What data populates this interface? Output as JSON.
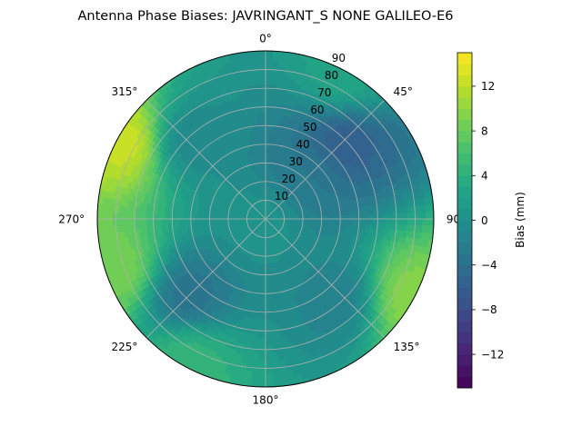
{
  "chart_data": {
    "type": "heatmap",
    "subtype": "polar-contour",
    "title": "Antenna Phase Biases: JAVRINGANT_S    NONE GALILEO-E6",
    "theta_ticks": [
      {
        "deg": 0,
        "label": "0°"
      },
      {
        "deg": 45,
        "label": "45°"
      },
      {
        "deg": 90,
        "label": "90°"
      },
      {
        "deg": 135,
        "label": "135°"
      },
      {
        "deg": 180,
        "label": "180°"
      },
      {
        "deg": 225,
        "label": "225°"
      },
      {
        "deg": 270,
        "label": "270°"
      },
      {
        "deg": 315,
        "label": "315°"
      }
    ],
    "theta_direction": "clockwise",
    "theta_zero": "top",
    "r_ticks": [
      10,
      20,
      30,
      40,
      50,
      60,
      70,
      80,
      90
    ],
    "r_range": [
      0,
      90
    ],
    "grid": true,
    "colorbar": {
      "label": "Bias (mm)",
      "range": [
        -15,
        15
      ],
      "ticks": [
        -12,
        -8,
        -4,
        0,
        4,
        8,
        12
      ],
      "tick_labels": [
        "−12",
        "−8",
        "−4",
        "0",
        "4",
        "8",
        "12"
      ],
      "levels": 30,
      "colormap": "viridis"
    },
    "bias_field_samples_mm": [
      {
        "r": 0,
        "theta": 0,
        "value": 0.5
      },
      {
        "r": 30,
        "theta": 45,
        "value": -3
      },
      {
        "r": 60,
        "theta": 45,
        "value": -6
      },
      {
        "r": 60,
        "theta": 225,
        "value": -4
      },
      {
        "r": 60,
        "theta": 135,
        "value": -2
      },
      {
        "r": 60,
        "theta": 315,
        "value": -1
      },
      {
        "r": 85,
        "theta": 300,
        "value": 13
      },
      {
        "r": 85,
        "theta": 250,
        "value": 9
      },
      {
        "r": 85,
        "theta": 120,
        "value": 10
      },
      {
        "r": 85,
        "theta": 210,
        "value": 5
      },
      {
        "r": 85,
        "theta": 30,
        "value": 3
      }
    ]
  },
  "colors": {
    "grid": "#b0b0b0",
    "text": "#000000"
  }
}
